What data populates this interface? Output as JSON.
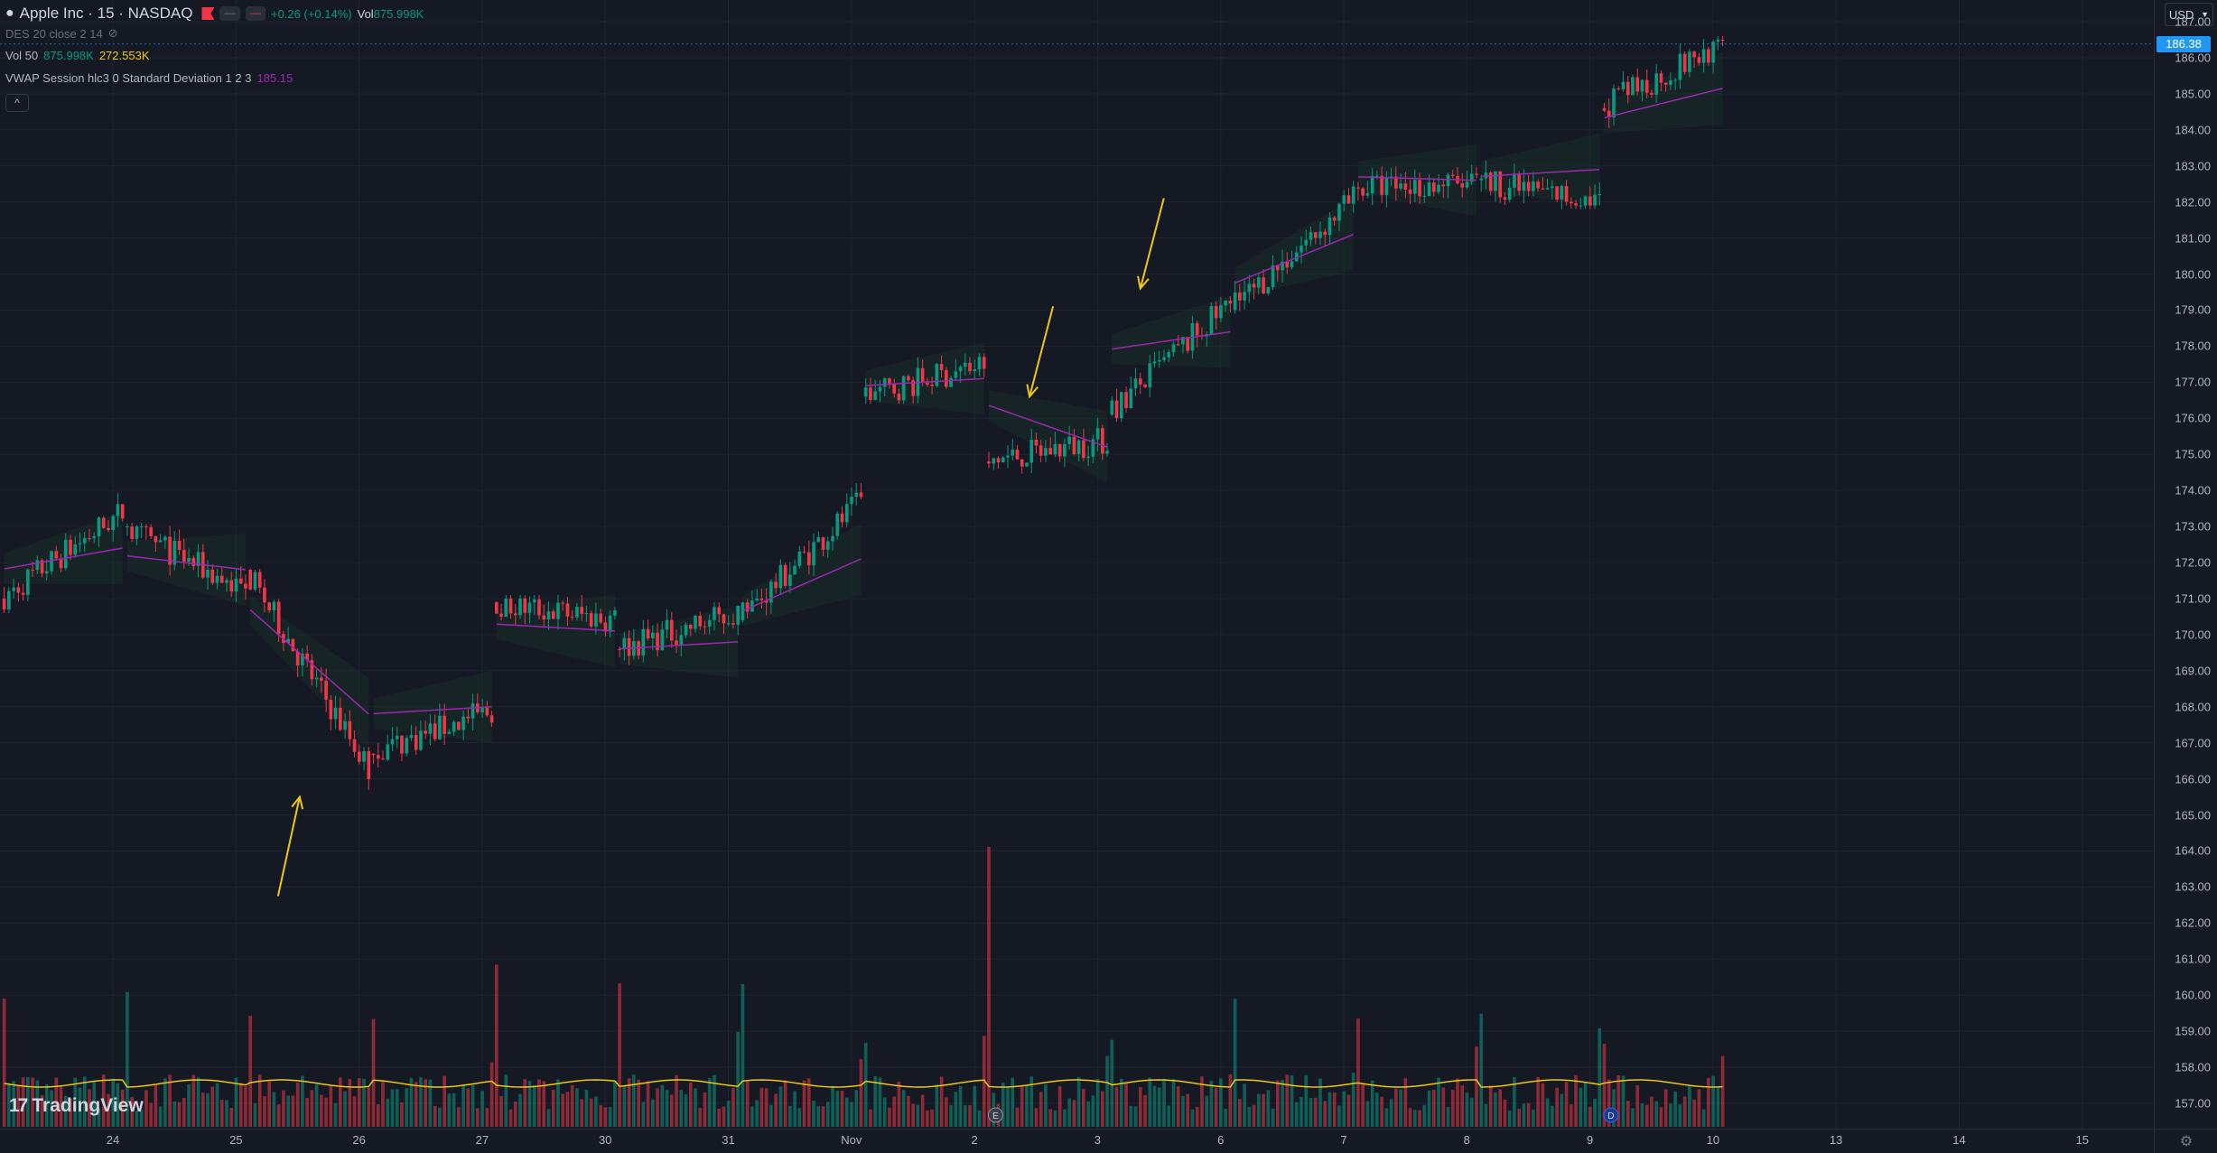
{
  "legend": {
    "title": "Apple Inc · 15 · NASDAQ",
    "change": "+0.26 (+0.14%)",
    "vol_label": "Vol",
    "vol_value": "875.998K",
    "des_label": "DES 20 close 2 14",
    "vol50_label": "Vol 50",
    "vol50_value": "875.998K",
    "vol50_ma": "272.553K",
    "vwap_label": "VWAP Session hlc3 0 Standard Deviation 1 2 3",
    "vwap_value": "185.15",
    "mini_btn_1": "‒‒",
    "mini_btn_2": "‒‒",
    "collapse": "^"
  },
  "currency": "USD",
  "last_price": "186.38",
  "price_ticks": [
    "187.00",
    "186.00",
    "185.00",
    "184.00",
    "183.00",
    "182.00",
    "181.00",
    "180.00",
    "179.00",
    "178.00",
    "177.00",
    "176.00",
    "175.00",
    "174.00",
    "173.00",
    "172.00",
    "171.00",
    "170.00",
    "169.00",
    "168.00",
    "167.00",
    "166.00",
    "165.00",
    "164.00",
    "163.00",
    "162.00",
    "161.00",
    "160.00",
    "159.00",
    "158.00",
    "157.00"
  ],
  "time_labels": [
    "24",
    "25",
    "26",
    "27",
    "30",
    "31",
    "Nov",
    "2",
    "3",
    "6",
    "7",
    "8",
    "9",
    "10",
    "13",
    "14",
    "15"
  ],
  "brand": "TradingView",
  "markers": {
    "earnings": "E",
    "dividend": "D"
  },
  "colors": {
    "up": "#089981",
    "down": "#f23645",
    "vwap": "#9c27b0",
    "volume_ma": "#f0c70f",
    "arrows": "#f0c70f",
    "last_price": "#2196f3"
  },
  "chart_data": {
    "type": "candlestick",
    "symbol": "Apple Inc",
    "interval": "15",
    "exchange": "NASDAQ",
    "ylim": [
      156.3,
      187.6
    ],
    "sessions": [
      {
        "day": "24",
        "open": 171.0,
        "close": 173.4,
        "low": 170.6,
        "high": 174.1,
        "vwap_start": 171.8,
        "vwap_end": 172.4
      },
      {
        "day": "25",
        "open": 173.0,
        "close": 171.2,
        "low": 170.9,
        "high": 173.1,
        "vwap_start": 172.2,
        "vwap_end": 171.8
      },
      {
        "day": "26",
        "open": 171.8,
        "close": 166.3,
        "low": 165.7,
        "high": 171.9,
        "vwap_start": 170.8,
        "vwap_end": 167.8
      },
      {
        "day": "27",
        "open": 166.7,
        "close": 167.9,
        "low": 166.3,
        "high": 169.0,
        "vwap_start": 167.8,
        "vwap_end": 168.0
      },
      {
        "day": "30",
        "open": 170.9,
        "close": 170.4,
        "low": 169.3,
        "high": 171.1,
        "vwap_start": 170.3,
        "vwap_end": 170.1
      },
      {
        "day": "31",
        "open": 169.6,
        "close": 170.6,
        "low": 168.1,
        "high": 170.9,
        "vwap_start": 169.6,
        "vwap_end": 169.8
      },
      {
        "day": "Nov",
        "open": 170.4,
        "close": 173.7,
        "low": 170.2,
        "high": 174.2,
        "vwap_start": 170.6,
        "vwap_end": 172.1
      },
      {
        "day": "2",
        "open": 176.6,
        "close": 177.5,
        "low": 176.4,
        "high": 177.8,
        "vwap_start": 176.9,
        "vwap_end": 177.1
      },
      {
        "day": "3",
        "open": 174.8,
        "close": 175.4,
        "low": 173.5,
        "high": 176.5,
        "vwap_start": 176.4,
        "vwap_end": 175.2
      },
      {
        "day": "6",
        "open": 176.1,
        "close": 179.2,
        "low": 175.9,
        "high": 179.5,
        "vwap_start": 177.9,
        "vwap_end": 178.4
      },
      {
        "day": "7",
        "open": 179.0,
        "close": 182.1,
        "low": 178.9,
        "high": 182.6,
        "vwap_start": 179.7,
        "vwap_end": 181.1
      },
      {
        "day": "8",
        "open": 182.4,
        "close": 182.5,
        "low": 181.7,
        "high": 183.5,
        "vwap_start": 182.7,
        "vwap_end": 182.6
      },
      {
        "day": "9",
        "open": 182.6,
        "close": 182.0,
        "low": 181.8,
        "high": 184.1,
        "vwap_start": 182.7,
        "vwap_end": 182.9
      },
      {
        "day": "10",
        "open": 184.6,
        "close": 186.38,
        "low": 183.8,
        "high": 186.6,
        "vwap_start": 184.3,
        "vwap_end": 185.15
      }
    ],
    "volume": {
      "last": "875.998K",
      "ma50": "272.553K"
    },
    "vwap_last": 185.15,
    "annotations": [
      {
        "type": "arrow",
        "target_day": "26",
        "target_price": 165.5,
        "direction": "up"
      },
      {
        "type": "arrow",
        "target_day": "3",
        "target_price": 176.6,
        "direction": "down"
      },
      {
        "type": "arrow",
        "target_day": "6",
        "target_price": 179.6,
        "direction": "down"
      }
    ]
  }
}
